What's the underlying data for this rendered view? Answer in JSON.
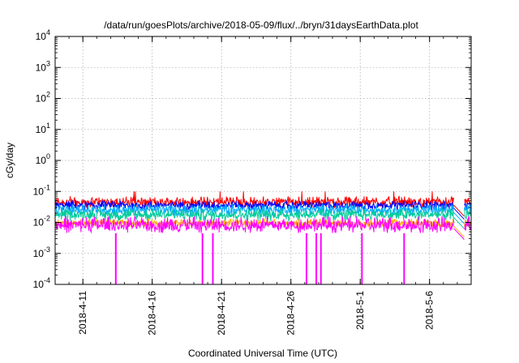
{
  "chart_data": {
    "type": "line",
    "title": "/data/run/goesPlots/archive/2018-05-09/flux/../bryn/31daysEarthData.plot",
    "xlabel": "Coordinated Universal Time (UTC)",
    "ylabel": "cGy/day",
    "yscale": "log",
    "ylim": [
      0.0001,
      10000
    ],
    "xlim": [
      "2018-04-09",
      "2018-05-09"
    ],
    "grid": true,
    "legend": "none",
    "x_ticks": [
      "2018-4-11",
      "2018-4-16",
      "2018-4-21",
      "2018-4-26",
      "2018-5-1",
      "2018-5-6"
    ],
    "y_ticks": [
      {
        "base": "10",
        "exp": "-4"
      },
      {
        "base": "10",
        "exp": "-3"
      },
      {
        "base": "10",
        "exp": "-2"
      },
      {
        "base": "10",
        "exp": "-1"
      },
      {
        "base": "10",
        "exp": "0"
      },
      {
        "base": "10",
        "exp": "1"
      },
      {
        "base": "10",
        "exp": "2"
      },
      {
        "base": "10",
        "exp": "3"
      },
      {
        "base": "10",
        "exp": "4"
      }
    ],
    "data_gap": {
      "start": "2018-05-07 18:00",
      "end": "2018-05-08 12:00"
    },
    "dropouts": [
      "2018-04-13 09:00",
      "2018-04-19 15:00",
      "2018-04-20 09:00",
      "2018-04-27 03:00",
      "2018-04-27 20:00",
      "2018-04-28 04:00",
      "2018-05-01 03:00",
      "2018-05-04 04:00"
    ],
    "series": [
      {
        "color": "#ff0000",
        "median": 0.045,
        "low": 0.03,
        "high": 0.07,
        "peak": 0.1
      },
      {
        "color": "#0000ff",
        "median": 0.036,
        "low": 0.025,
        "high": 0.05
      },
      {
        "color": "#00aaff",
        "median": 0.026,
        "low": 0.016,
        "high": 0.04
      },
      {
        "color": "#00cc99",
        "median": 0.018,
        "low": 0.011,
        "high": 0.028
      },
      {
        "color": "#ffaa00",
        "median": 0.0095,
        "low": 0.007,
        "high": 0.013
      },
      {
        "color": "#ff00ff",
        "median": 0.008,
        "low": 0.0045,
        "high": 0.016
      }
    ]
  }
}
